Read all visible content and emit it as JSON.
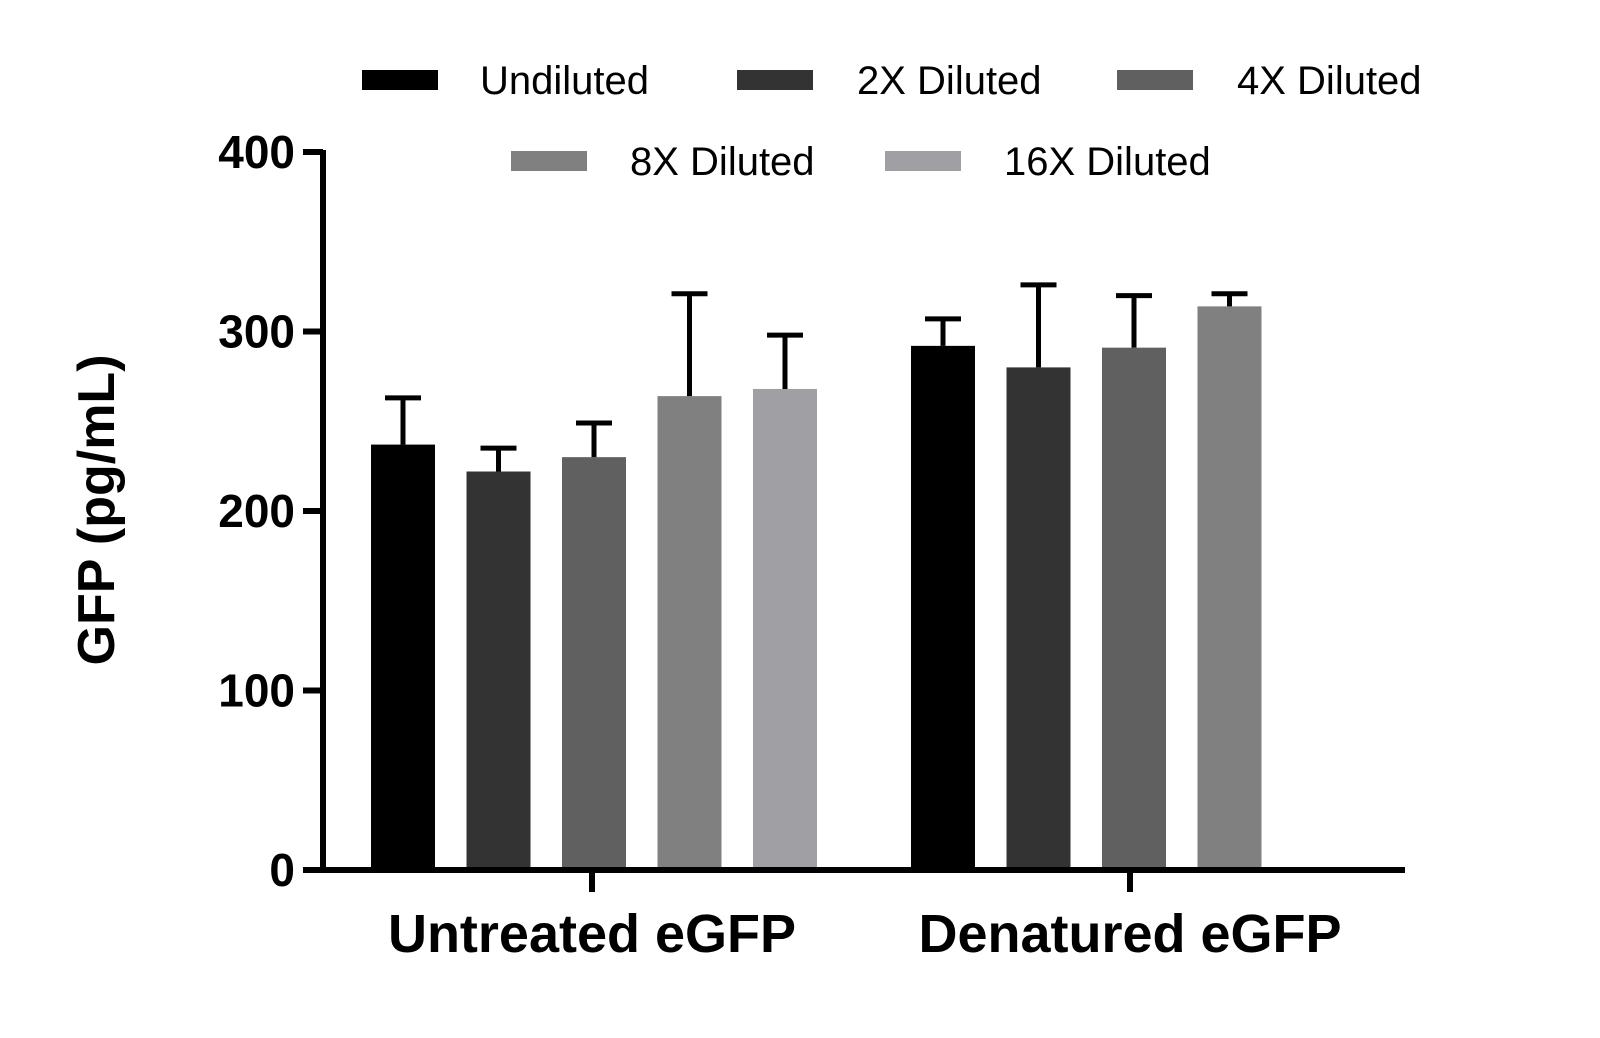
{
  "chart_data": {
    "type": "bar",
    "title": "",
    "xlabel": "",
    "ylabel": "GFP (pg/mL)",
    "ylim": [
      0,
      400
    ],
    "yticks": [
      0,
      100,
      200,
      300,
      400
    ],
    "categories": [
      "Untreated eGFP",
      "Denatured eGFP"
    ],
    "legend_position": "top",
    "grid": false,
    "series": [
      {
        "name": "Undiluted",
        "color": "#000000",
        "values": [
          237,
          292
        ],
        "errors": [
          26,
          15
        ]
      },
      {
        "name": "2X Diluted",
        "color": "#333333",
        "values": [
          222,
          280
        ],
        "errors": [
          13,
          46
        ]
      },
      {
        "name": "4X Diluted",
        "color": "#606060",
        "values": [
          230,
          291
        ],
        "errors": [
          19,
          29
        ]
      },
      {
        "name": "8X Diluted",
        "color": "#808080",
        "values": [
          264,
          314
        ],
        "errors": [
          57,
          7
        ]
      },
      {
        "name": "16X Diluted",
        "color": "#a0a0a4",
        "values": [
          268,
          null
        ],
        "errors": [
          30,
          null
        ]
      }
    ]
  }
}
